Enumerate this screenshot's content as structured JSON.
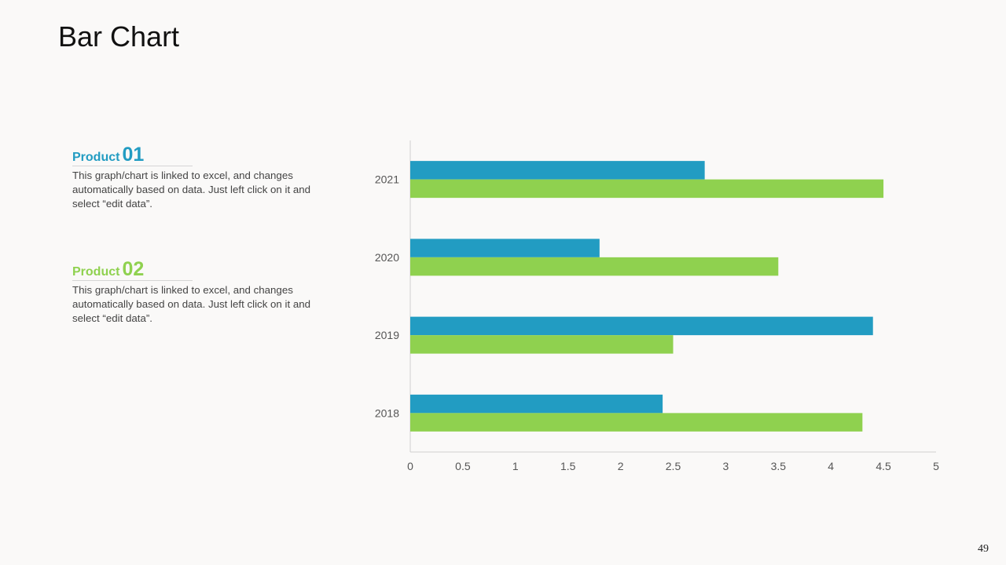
{
  "slide": {
    "title": "Bar Chart",
    "page_number": "49"
  },
  "legend": [
    {
      "word": "Product",
      "number": "01",
      "color": "#229cc2",
      "description": "This graph/chart is linked to excel, and changes automatically based on data. Just left click on it and select “edit data”."
    },
    {
      "word": "Product",
      "number": "02",
      "color": "#8fd14f",
      "description": "This graph/chart is linked to excel, and changes automatically based on data. Just left click on it and select “edit data”."
    }
  ],
  "chart_data": {
    "type": "bar",
    "orientation": "horizontal",
    "categories": [
      "2018",
      "2019",
      "2020",
      "2021"
    ],
    "series": [
      {
        "name": "Product 01",
        "color": "#229cc2",
        "values": [
          2.4,
          4.4,
          1.8,
          2.8
        ]
      },
      {
        "name": "Product 02",
        "color": "#8fd14f",
        "values": [
          4.3,
          2.5,
          3.5,
          4.5
        ]
      }
    ],
    "xlim": [
      0,
      5
    ],
    "xticks": [
      "0",
      "0.5",
      "1",
      "1.5",
      "2",
      "2.5",
      "3",
      "3.5",
      "4",
      "4.5",
      "5"
    ],
    "grid": false
  }
}
